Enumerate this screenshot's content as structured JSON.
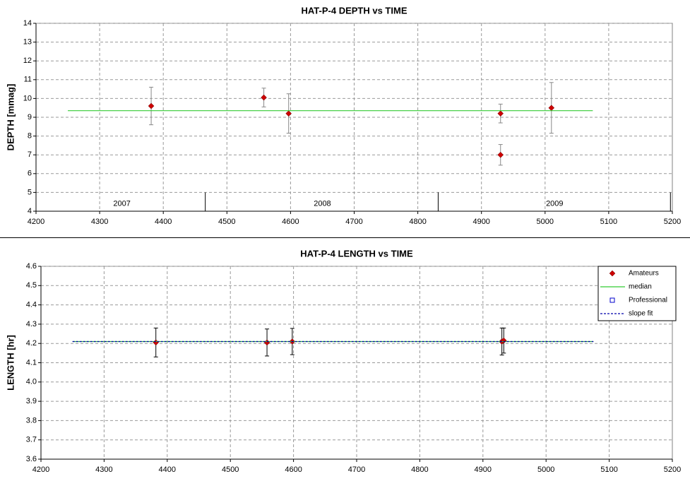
{
  "chart_data": [
    {
      "type": "scatter",
      "title": "HAT-P-4 DEPTH vs TIME",
      "y_label": "DEPTH [mmag]",
      "xlim": [
        4200,
        5200
      ],
      "xticks": [
        4200,
        4300,
        4400,
        4500,
        4600,
        4700,
        4800,
        4900,
        5000,
        5100,
        5200
      ],
      "ylim": [
        4,
        14
      ],
      "yticks": [
        4,
        5,
        6,
        7,
        8,
        9,
        10,
        11,
        12,
        13,
        14
      ],
      "grid": true,
      "error_color": "#888888",
      "series": [
        {
          "mode": "markers",
          "color": "#cc0000",
          "x": [
            4381,
            4558,
            4597,
            4930,
            4930,
            5010
          ],
          "values": [
            9.6,
            10.05,
            9.2,
            9.2,
            7.0,
            9.5
          ],
          "errors": [
            1.0,
            0.5,
            1.05,
            0.5,
            0.55,
            1.35
          ]
        },
        {
          "mode": "line",
          "color": "#33cc33",
          "x": [
            4250,
            5075
          ],
          "values": [
            9.35,
            9.35
          ]
        }
      ],
      "year_dividers": [
        4466,
        4832,
        5197
      ],
      "year_labels": [
        {
          "text": "2007",
          "x": 4335
        },
        {
          "text": "2008",
          "x": 4650
        },
        {
          "text": "2009",
          "x": 5015
        }
      ]
    },
    {
      "type": "scatter",
      "title": "HAT-P-4 LENGTH vs TIME",
      "y_label": "LENGTH [hr]",
      "xlim": [
        4200,
        5200
      ],
      "xticks": [
        4200,
        4300,
        4400,
        4500,
        4600,
        4700,
        4800,
        4900,
        5000,
        5100,
        5200
      ],
      "ylim": [
        3.6,
        4.6
      ],
      "yticks": [
        3.6,
        3.7,
        3.8,
        3.9,
        {
          "value": 4,
          "label": "4.0"
        },
        4.1,
        4.2,
        4.3,
        4.4,
        4.5,
        4.6
      ],
      "grid": true,
      "error_color": "#000000",
      "legend": "upper right",
      "series": [
        {
          "name": "Amateurs",
          "mode": "markers",
          "color": "#cc0000",
          "x": [
            4382,
            4558,
            4598,
            4930,
            4933
          ],
          "values": [
            4.205,
            4.205,
            4.21,
            4.21,
            4.215
          ],
          "errors": [
            0.075,
            0.07,
            0.068,
            0.07,
            0.065
          ]
        },
        {
          "name": "median",
          "mode": "line",
          "color": "#33cc33",
          "x": [
            4250,
            5075
          ],
          "values": [
            4.21,
            4.21
          ]
        },
        {
          "name": "Professional",
          "mode": "squares",
          "color": "#0000cc",
          "x": [],
          "values": []
        },
        {
          "name": "slope fit",
          "mode": "dashed",
          "color": "#0000aa",
          "x": [
            4250,
            5075
          ],
          "values": [
            4.21,
            4.21
          ]
        }
      ]
    }
  ]
}
